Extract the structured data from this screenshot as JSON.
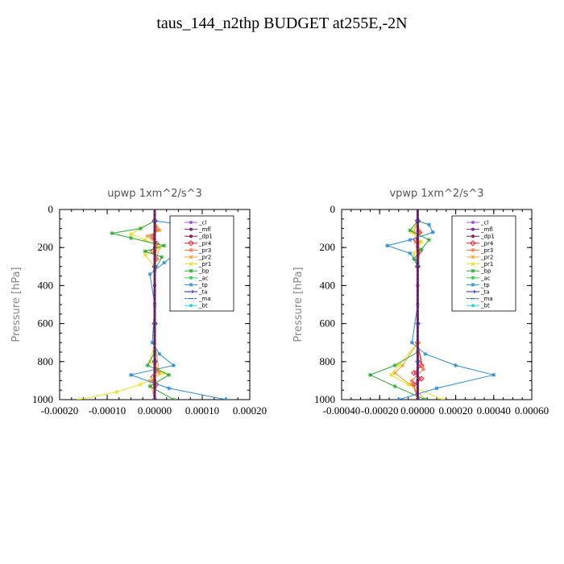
{
  "page": {
    "title": "taus_144_n2thp  BUDGET at255E,-2N"
  },
  "chart_data": [
    {
      "type": "line",
      "title": "upwp   1xm^2/s^3",
      "ylabel": "Pressure [hPa]",
      "xlabel": "",
      "xlim": [
        -0.0002,
        0.0002
      ],
      "ylim": [
        0,
        1000
      ],
      "y_inverted": true,
      "grid": false,
      "legend_placement": "top-right",
      "x_ticks": [
        -0.0002,
        -0.0001,
        0.0,
        0.0001,
        0.0002
      ],
      "x_tick_labels": [
        "-0.00020",
        "-0.00010",
        "0.00000",
        "0.00010",
        "0.00020"
      ],
      "y_ticks": [
        0,
        200,
        400,
        600,
        800,
        1000
      ],
      "y_tick_labels": [
        "0",
        "200",
        "400",
        "600",
        "800",
        "1000"
      ],
      "series": [
        {
          "name": "_cl",
          "color": "#9b59d0",
          "marker": "dot",
          "x": [
            0,
            0,
            0,
            0,
            0,
            0,
            0
          ],
          "y": [
            60,
            200,
            400,
            600,
            800,
            900,
            1000
          ]
        },
        {
          "name": "_mfl",
          "color": "#7a2a8a",
          "marker": "dot",
          "x": [
            0,
            0,
            0,
            0,
            0,
            0,
            0
          ],
          "y": [
            60,
            200,
            400,
            600,
            800,
            900,
            1000
          ]
        },
        {
          "name": "_dp1",
          "color": "#8b1a4a",
          "marker": "dot",
          "x": [
            0,
            0,
            0,
            0,
            0,
            0,
            0
          ],
          "y": [
            60,
            200,
            400,
            600,
            800,
            900,
            1000
          ]
        },
        {
          "name": "_pr4",
          "color": "#e8202a",
          "marker": "diamond",
          "x": [
            0,
            4e-06,
            -4e-06,
            4e-06,
            -4e-06,
            3e-06,
            0,
            0,
            0,
            3e-06,
            -3e-06,
            3e-06,
            0
          ],
          "y": [
            60,
            100,
            140,
            180,
            220,
            260,
            300,
            600,
            800,
            840,
            880,
            920,
            1000
          ]
        },
        {
          "name": "_pr3",
          "color": "#ff6a3c",
          "marker": "star",
          "x": [
            0,
            5e-06,
            -5e-06,
            4e-06,
            0,
            0,
            4e-06,
            -4e-06,
            0
          ],
          "y": [
            60,
            110,
            150,
            200,
            300,
            700,
            850,
            900,
            1000
          ]
        },
        {
          "name": "_pr2",
          "color": "#f0a030",
          "marker": "star",
          "x": [
            0,
            1e-05,
            -1.5e-05,
            1e-05,
            0,
            0,
            1e-05,
            -1e-05,
            0
          ],
          "y": [
            60,
            110,
            140,
            200,
            300,
            700,
            860,
            900,
            1000
          ]
        },
        {
          "name": "_pr1",
          "color": "#e8e020",
          "marker": "star",
          "x": [
            0,
            -3e-05,
            -5e-05,
            -2e-05,
            1e-05,
            -2e-05,
            0,
            0,
            -1e-05,
            2e-05,
            -3e-05,
            -8e-05,
            -0.00016
          ],
          "y": [
            60,
            100,
            130,
            160,
            200,
            240,
            300,
            700,
            800,
            860,
            920,
            960,
            1000
          ]
        },
        {
          "name": "_bp",
          "color": "#2aa830",
          "marker": "star",
          "x": [
            0,
            -3e-05,
            -9e-05,
            -5e-05,
            2e-05,
            -2e-05,
            1.5e-05,
            0,
            0,
            -1.5e-05,
            3e-05,
            -1e-05,
            4e-05
          ],
          "y": [
            60,
            100,
            125,
            150,
            190,
            220,
            250,
            320,
            750,
            820,
            870,
            930,
            1000
          ]
        },
        {
          "name": "_ac",
          "color": "#30d050",
          "marker": "dot",
          "x": [
            0,
            0,
            0,
            0,
            0
          ],
          "y": [
            60,
            300,
            600,
            800,
            1000
          ]
        },
        {
          "name": "_tp",
          "color": "#2a8ad0",
          "marker": "star",
          "x": [
            0,
            6e-05,
            0.00016,
            4e-05,
            5e-05,
            2e-05,
            -1e-05,
            0,
            -5e-06,
            1e-05,
            4e-05,
            -5e-05,
            3e-05,
            0.00015
          ],
          "y": [
            60,
            80,
            120,
            160,
            220,
            280,
            340,
            500,
            700,
            760,
            820,
            870,
            940,
            1000
          ]
        },
        {
          "name": "_ta",
          "color": "#2020c0",
          "marker": "arrow",
          "x": [
            0,
            0,
            0,
            0,
            0
          ],
          "y": [
            60,
            300,
            600,
            800,
            1000
          ]
        },
        {
          "name": "_ma",
          "color": "#1a6ad0",
          "marker": "dash",
          "x": [
            0,
            0,
            0,
            0,
            0
          ],
          "y": [
            60,
            300,
            600,
            800,
            1000
          ]
        },
        {
          "name": "_bt",
          "color": "#30d0e0",
          "marker": "dot",
          "x": [
            0,
            0,
            0,
            0,
            0
          ],
          "y": [
            60,
            300,
            600,
            800,
            1000
          ]
        }
      ]
    },
    {
      "type": "line",
      "title": "vpwp   1xm^2/s^3",
      "ylabel": "Pressure [hPa]",
      "xlabel": "",
      "xlim": [
        -0.0004,
        0.0006
      ],
      "ylim": [
        0,
        1000
      ],
      "y_inverted": true,
      "grid": false,
      "legend_placement": "top-right",
      "x_ticks": [
        -0.0004,
        -0.0002,
        0.0,
        0.0002,
        0.0004,
        0.0006
      ],
      "x_tick_labels": [
        "-0.00040",
        "-0.00020",
        "0.00000",
        "0.00020",
        "0.00040",
        "0.00060"
      ],
      "y_ticks": [
        0,
        200,
        400,
        600,
        800,
        1000
      ],
      "y_tick_labels": [
        "0",
        "200",
        "400",
        "600",
        "800",
        "1000"
      ],
      "series": [
        {
          "name": "_cl",
          "color": "#9b59d0",
          "marker": "dot",
          "x": [
            0,
            0,
            0,
            0,
            0,
            0,
            0
          ],
          "y": [
            60,
            200,
            400,
            600,
            800,
            900,
            1000
          ]
        },
        {
          "name": "_mfl",
          "color": "#7a2a8a",
          "marker": "dot",
          "x": [
            0,
            0,
            0,
            0,
            0,
            0,
            0
          ],
          "y": [
            60,
            200,
            400,
            600,
            800,
            900,
            1000
          ]
        },
        {
          "name": "_dp1",
          "color": "#8b1a4a",
          "marker": "dot",
          "x": [
            0,
            0,
            0,
            0,
            0,
            0,
            0
          ],
          "y": [
            60,
            200,
            400,
            600,
            800,
            900,
            1000
          ]
        },
        {
          "name": "_pr4",
          "color": "#e8202a",
          "marker": "diamond",
          "x": [
            0,
            1e-05,
            -1e-05,
            1e-05,
            0,
            0,
            2e-05,
            -2e-05,
            2e-05,
            -2e-05,
            0
          ],
          "y": [
            60,
            120,
            160,
            220,
            300,
            700,
            820,
            860,
            890,
            920,
            1000
          ]
        },
        {
          "name": "_pr3",
          "color": "#ff6a3c",
          "marker": "star",
          "x": [
            0,
            1e-05,
            -1e-05,
            0,
            0,
            3e-05,
            -3e-05,
            0
          ],
          "y": [
            60,
            120,
            170,
            260,
            700,
            840,
            900,
            1000
          ]
        },
        {
          "name": "_pr2",
          "color": "#f0a030",
          "marker": "star",
          "x": [
            0,
            -2e-05,
            1e-05,
            0,
            0,
            -8e-05,
            -0.00012,
            -4e-05,
            4e-05
          ],
          "y": [
            60,
            120,
            170,
            260,
            700,
            820,
            860,
            920,
            1000
          ]
        },
        {
          "name": "_pr1",
          "color": "#e8e020",
          "marker": "star",
          "x": [
            0,
            -3e-05,
            2e-05,
            -2e-05,
            0,
            0,
            -0.0001,
            -0.00014,
            -5e-05,
            0.00013
          ],
          "y": [
            60,
            120,
            170,
            230,
            300,
            700,
            820,
            870,
            920,
            1000
          ]
        },
        {
          "name": "_bp",
          "color": "#2aa830",
          "marker": "star",
          "x": [
            0,
            -4e-05,
            6e-05,
            2e-05,
            -2e-05,
            0,
            0,
            -0.00012,
            -0.00025,
            -0.00012,
            4e-05
          ],
          "y": [
            60,
            110,
            160,
            210,
            260,
            300,
            750,
            820,
            870,
            930,
            1000
          ]
        },
        {
          "name": "_ac",
          "color": "#30d050",
          "marker": "dot",
          "x": [
            0,
            0,
            0,
            0,
            0
          ],
          "y": [
            60,
            300,
            600,
            800,
            1000
          ]
        },
        {
          "name": "_tp",
          "color": "#2a8ad0",
          "marker": "star",
          "x": [
            0,
            6e-05,
            8e-05,
            -4e-05,
            -0.00016,
            -4e-05,
            0,
            0,
            -3e-05,
            4e-05,
            0.0002,
            0.0004,
            0.0001,
            -0.0001
          ],
          "y": [
            60,
            80,
            120,
            160,
            190,
            230,
            280,
            500,
            700,
            760,
            820,
            870,
            940,
            1000
          ]
        },
        {
          "name": "_ta",
          "color": "#2020c0",
          "marker": "arrow",
          "x": [
            0,
            0,
            0,
            0,
            0
          ],
          "y": [
            60,
            300,
            600,
            800,
            1000
          ]
        },
        {
          "name": "_ma",
          "color": "#1a6ad0",
          "marker": "dash",
          "x": [
            0,
            0,
            0,
            0,
            0
          ],
          "y": [
            60,
            300,
            600,
            800,
            1000
          ]
        },
        {
          "name": "_bt",
          "color": "#30d0e0",
          "marker": "dot",
          "x": [
            0,
            0,
            0,
            0,
            0
          ],
          "y": [
            60,
            300,
            600,
            800,
            1000
          ]
        }
      ]
    }
  ]
}
